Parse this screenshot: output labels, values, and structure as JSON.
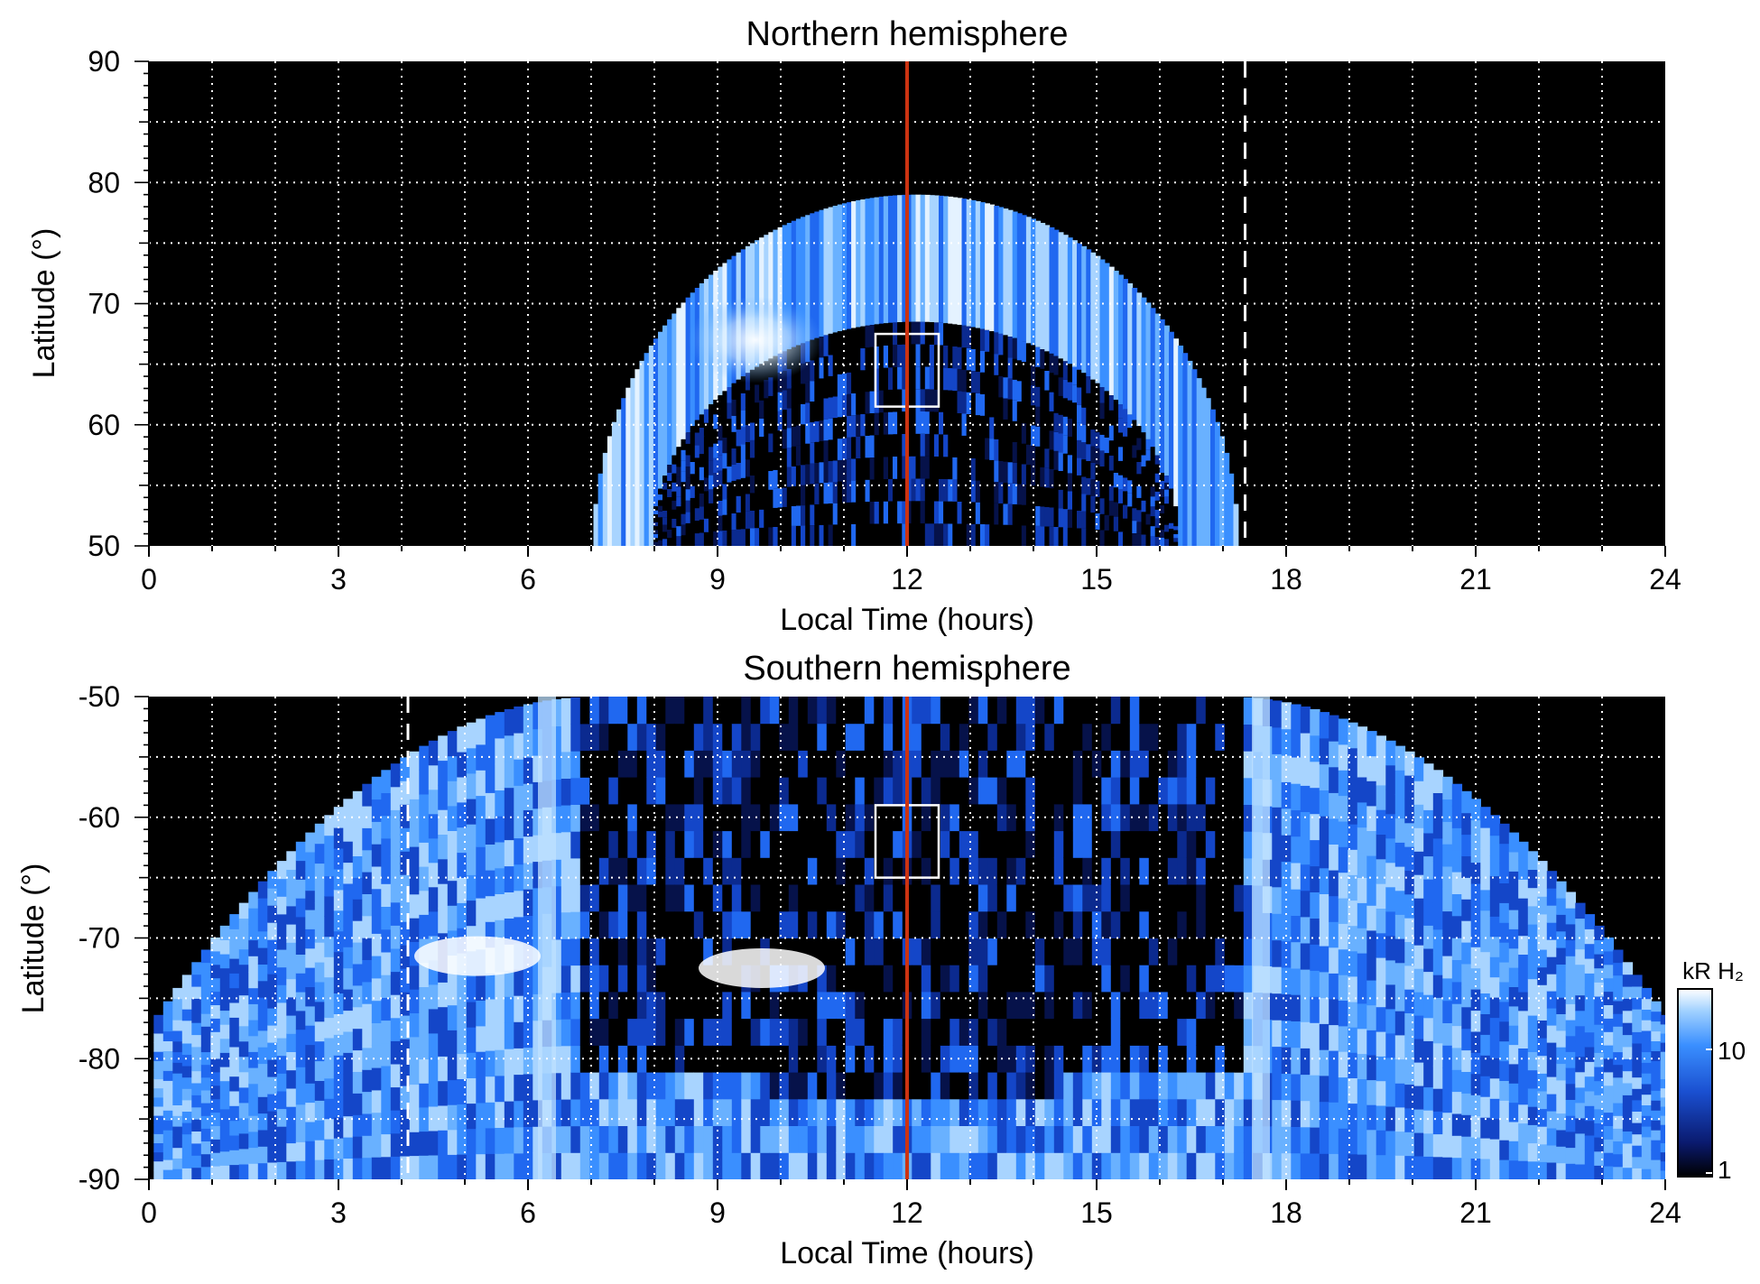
{
  "chart_data": [
    {
      "type": "heatmap",
      "title": "Northern hemisphere",
      "xlabel": "Local Time (hours)",
      "ylabel": "Latitude (°)",
      "xlim": [
        0,
        24
      ],
      "ylim": [
        50,
        90
      ],
      "xticks": [
        "0",
        "3",
        "6",
        "9",
        "12",
        "15",
        "18",
        "21",
        "24"
      ],
      "yticks": [
        "50",
        "60",
        "70",
        "80",
        "90"
      ],
      "grid": true,
      "grid_x_step_hours": 1,
      "grid_y_step_deg": 5,
      "noon_line_local_time": 12,
      "noon_line_color": "#cc3311",
      "dashed_line_local_time": 17.35,
      "box": {
        "lt": [
          11.5,
          12.5
        ],
        "lat": [
          61.5,
          67.5
        ]
      },
      "oval": {
        "lt_range": [
          7.0,
          17.2
        ],
        "peak_lat_outer": 79,
        "peak_lat_inner": 68.5,
        "bright_spot": {
          "lt": 9.6,
          "lat": 67
        }
      }
    },
    {
      "type": "heatmap",
      "title": "Southern hemisphere",
      "xlabel": "Local Time (hours)",
      "ylabel": "Latitude (°)",
      "xlim": [
        0,
        24
      ],
      "ylim": [
        -90,
        -50
      ],
      "xticks": [
        "0",
        "3",
        "6",
        "9",
        "12",
        "15",
        "18",
        "21",
        "24"
      ],
      "yticks": [
        "-50",
        "-60",
        "-70",
        "-80",
        "-90"
      ],
      "grid": true,
      "grid_x_step_hours": 1,
      "grid_y_step_deg": 5,
      "noon_line_local_time": 12,
      "noon_line_color": "#cc3311",
      "dashed_line_local_time": 4.1,
      "box": {
        "lt": [
          11.5,
          12.5
        ],
        "lat": [
          -65,
          -59
        ]
      },
      "oval": {
        "lt_range": [
          0,
          24
        ],
        "bright_columns_lt": [
          6.3,
          17.6
        ],
        "bright_spots": [
          {
            "lt": 5.2,
            "lat": -71.5
          },
          {
            "lt": 9.7,
            "lat": -72.5
          }
        ]
      }
    }
  ],
  "colorbar": {
    "label": "kR H₂",
    "ticks": [
      "1",
      "10"
    ],
    "scale": "log",
    "colors": [
      "#000000",
      "#0a1a6e",
      "#1a4fd0",
      "#3a8fff",
      "#9fd0ff",
      "#ffffff"
    ]
  }
}
